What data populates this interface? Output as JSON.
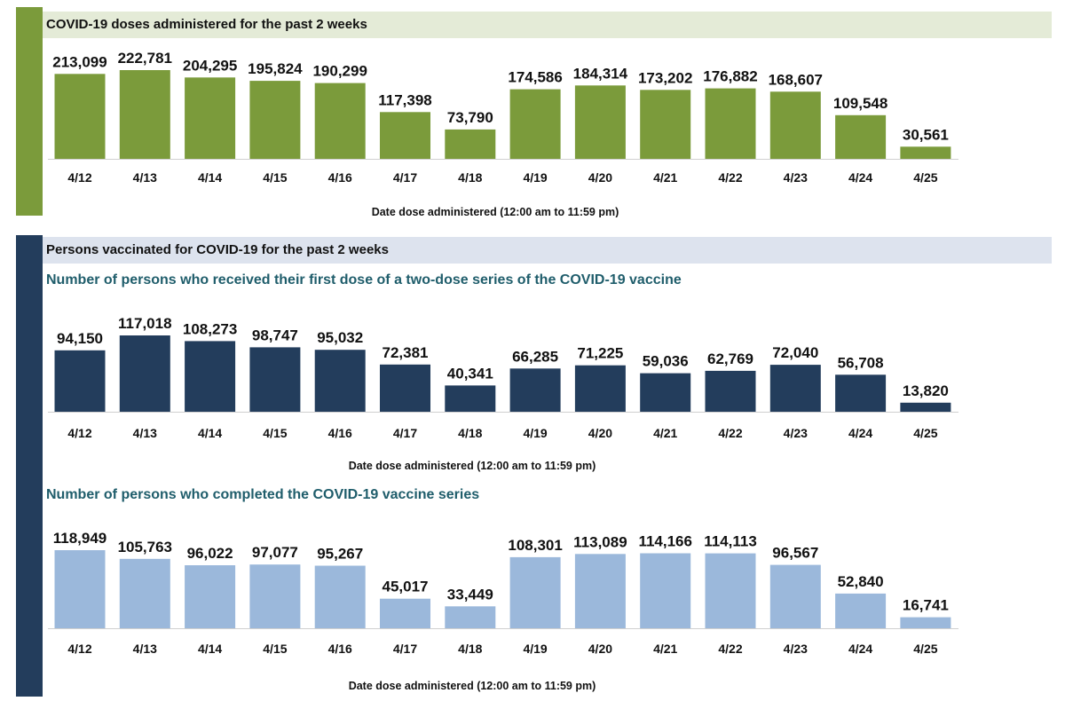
{
  "sections": [
    {
      "title": "COVID-19 doses administered for the past 2 weeks",
      "bar_color": "#7b9b3b",
      "header_bg": "#e4ebd7"
    },
    {
      "title": "Persons vaccinated for COVID-19 for the past 2 weeks",
      "bar_color": "#233d5c",
      "header_bg": "#dde3ee"
    }
  ],
  "subtitles": {
    "first_dose": "Number of persons who received their first dose of a two-dose series of the COVID-19 vaccine",
    "completed": "Number of persons who completed the COVID-19 vaccine series"
  },
  "chart_data": [
    {
      "type": "bar",
      "title": "COVID-19 doses administered for the past 2 weeks",
      "xlabel": "Date dose administered (12:00 am to 11:59 pm)",
      "ylabel": "",
      "categories": [
        "4/12",
        "4/13",
        "4/14",
        "4/15",
        "4/16",
        "4/17",
        "4/18",
        "4/19",
        "4/20",
        "4/21",
        "4/22",
        "4/23",
        "4/24",
        "4/25"
      ],
      "values": [
        213099,
        222781,
        204295,
        195824,
        190299,
        117398,
        73790,
        174586,
        184314,
        173202,
        176882,
        168607,
        109548,
        30561
      ],
      "value_labels": [
        "213,099",
        "222,781",
        "204,295",
        "195,824",
        "190,299",
        "117,398",
        "73,790",
        "174,586",
        "184,314",
        "173,202",
        "176,882",
        "168,607",
        "109,548",
        "30,561"
      ],
      "color": "#7b9b3b",
      "grid": false
    },
    {
      "type": "bar",
      "title": "Number of persons who received their first dose of a two-dose series of the COVID-19 vaccine",
      "xlabel": "Date dose administered (12:00 am to 11:59 pm)",
      "ylabel": "",
      "categories": [
        "4/12",
        "4/13",
        "4/14",
        "4/15",
        "4/16",
        "4/17",
        "4/18",
        "4/19",
        "4/20",
        "4/21",
        "4/22",
        "4/23",
        "4/24",
        "4/25"
      ],
      "values": [
        94150,
        117018,
        108273,
        98747,
        95032,
        72381,
        40341,
        66285,
        71225,
        59036,
        62769,
        72040,
        56708,
        13820
      ],
      "value_labels": [
        "94,150",
        "117,018",
        "108,273",
        "98,747",
        "95,032",
        "72,381",
        "40,341",
        "66,285",
        "71,225",
        "59,036",
        "62,769",
        "72,040",
        "56,708",
        "13,820"
      ],
      "color": "#233d5c",
      "grid": false
    },
    {
      "type": "bar",
      "title": "Number of persons who completed the COVID-19 vaccine series",
      "xlabel": "Date dose administered (12:00 am to 11:59 pm)",
      "ylabel": "",
      "categories": [
        "4/12",
        "4/13",
        "4/14",
        "4/15",
        "4/16",
        "4/17",
        "4/18",
        "4/19",
        "4/20",
        "4/21",
        "4/22",
        "4/23",
        "4/24",
        "4/25"
      ],
      "values": [
        118949,
        105763,
        96022,
        97077,
        95267,
        45017,
        33449,
        108301,
        113089,
        114166,
        114113,
        96567,
        52840,
        16741
      ],
      "value_labels": [
        "118,949",
        "105,763",
        "96,022",
        "97,077",
        "95,267",
        "45,017",
        "33,449",
        "108,301",
        "113,089",
        "114,166",
        "114,113",
        "96,567",
        "52,840",
        "16,741"
      ],
      "color": "#9bb8db",
      "grid": false
    }
  ]
}
